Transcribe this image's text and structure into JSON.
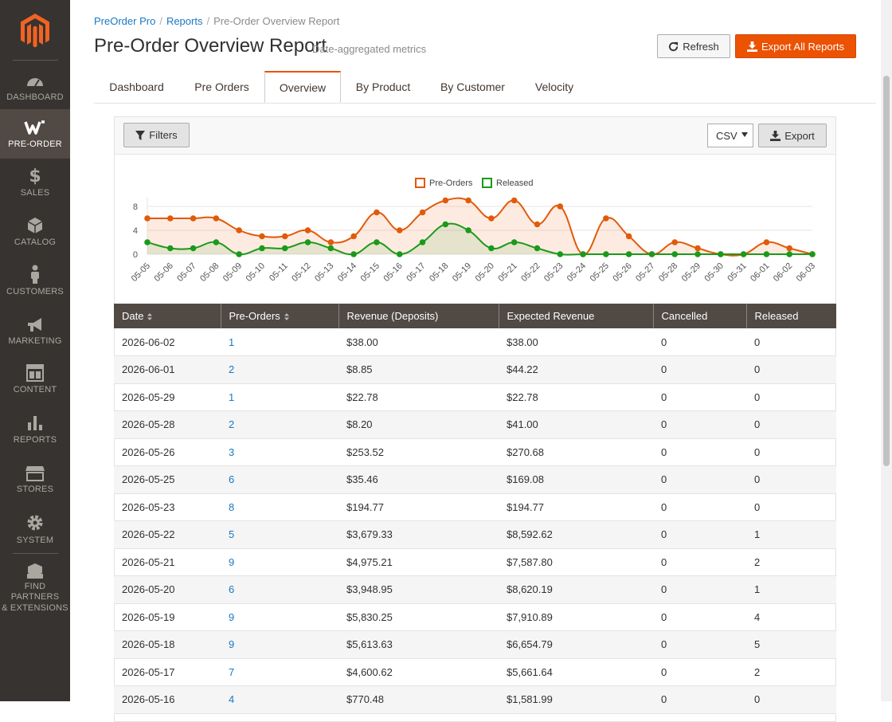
{
  "sidebar": {
    "items": [
      {
        "label": "DASHBOARD",
        "icon": "dashboard-icon"
      },
      {
        "label": "PRE-ORDER",
        "icon": "preorder-icon"
      },
      {
        "label": "SALES",
        "icon": "dollar-icon"
      },
      {
        "label": "CATALOG",
        "icon": "box-icon"
      },
      {
        "label": "CUSTOMERS",
        "icon": "person-icon"
      },
      {
        "label": "MARKETING",
        "icon": "megaphone-icon"
      },
      {
        "label": "CONTENT",
        "icon": "layout-icon"
      },
      {
        "label": "REPORTS",
        "icon": "bar-chart-icon"
      },
      {
        "label": "STORES",
        "icon": "store-icon"
      },
      {
        "label": "SYSTEM",
        "icon": "gear-icon"
      }
    ],
    "extensions_label_1": "FIND PARTNERS",
    "extensions_label_2": "& EXTENSIONS"
  },
  "breadcrumb": {
    "items": [
      "PreOrder Pro",
      "Reports",
      "Pre-Order Overview Report"
    ],
    "separator": "/"
  },
  "header": {
    "title": "Pre-Order Overview Report",
    "subtitle": "Date-aggregated metrics",
    "refresh_label": "Refresh",
    "export_all_label": "Export All Reports"
  },
  "tabs": [
    "Dashboard",
    "Pre Orders",
    "Overview",
    "By Product",
    "By Customer",
    "Velocity"
  ],
  "toolbar": {
    "filters_label": "Filters",
    "format_value": "CSV",
    "export_label": "Export"
  },
  "colors": {
    "accent": "#eb5202",
    "preorders_line": "#e15a0a",
    "released_line": "#1a9a1a",
    "table_header": "#514943",
    "link": "#1979c3"
  },
  "chart_data": {
    "type": "line",
    "x": [
      "05-05",
      "05-06",
      "05-07",
      "05-08",
      "05-09",
      "05-10",
      "05-11",
      "05-12",
      "05-13",
      "05-14",
      "05-15",
      "05-16",
      "05-17",
      "05-18",
      "05-19",
      "05-20",
      "05-21",
      "05-22",
      "05-23",
      "05-24",
      "05-25",
      "05-26",
      "05-27",
      "05-28",
      "05-29",
      "05-30",
      "05-31",
      "06-01",
      "06-02",
      "06-03"
    ],
    "series": [
      {
        "name": "Pre-Orders",
        "values": [
          6,
          6,
          6,
          6,
          4,
          3,
          3,
          4,
          2,
          3,
          7,
          4,
          7,
          9,
          9,
          6,
          9,
          5,
          8,
          0,
          6,
          3,
          0,
          2,
          1,
          0,
          0,
          2,
          1,
          0
        ]
      },
      {
        "name": "Released",
        "values": [
          2,
          1,
          1,
          2,
          0,
          1,
          1,
          2,
          1,
          0,
          2,
          0,
          2,
          5,
          4,
          1,
          2,
          1,
          0,
          0,
          0,
          0,
          0,
          0,
          0,
          0,
          0,
          0,
          0,
          0
        ]
      }
    ],
    "yticks": [
      "0",
      "4",
      "8"
    ],
    "ylim": [
      0,
      10
    ],
    "legend": "top-center",
    "grid": true
  },
  "table": {
    "columns": [
      "Date",
      "Pre-Orders",
      "Revenue (Deposits)",
      "Expected Revenue",
      "Cancelled",
      "Released"
    ],
    "rows": [
      [
        "2026-06-02",
        "1",
        "$38.00",
        "$38.00",
        "0",
        "0"
      ],
      [
        "2026-06-01",
        "2",
        "$8.85",
        "$44.22",
        "0",
        "0"
      ],
      [
        "2026-05-29",
        "1",
        "$22.78",
        "$22.78",
        "0",
        "0"
      ],
      [
        "2026-05-28",
        "2",
        "$8.20",
        "$41.00",
        "0",
        "0"
      ],
      [
        "2026-05-26",
        "3",
        "$253.52",
        "$270.68",
        "0",
        "0"
      ],
      [
        "2026-05-25",
        "6",
        "$35.46",
        "$169.08",
        "0",
        "0"
      ],
      [
        "2026-05-23",
        "8",
        "$194.77",
        "$194.77",
        "0",
        "0"
      ],
      [
        "2026-05-22",
        "5",
        "$3,679.33",
        "$8,592.62",
        "0",
        "1"
      ],
      [
        "2026-05-21",
        "9",
        "$4,975.21",
        "$7,587.80",
        "0",
        "2"
      ],
      [
        "2026-05-20",
        "6",
        "$3,948.95",
        "$8,620.19",
        "0",
        "1"
      ],
      [
        "2026-05-19",
        "9",
        "$5,830.25",
        "$7,910.89",
        "0",
        "4"
      ],
      [
        "2026-05-18",
        "9",
        "$5,613.63",
        "$6,654.79",
        "0",
        "5"
      ],
      [
        "2026-05-17",
        "7",
        "$4,600.62",
        "$5,661.64",
        "0",
        "2"
      ],
      [
        "2026-05-16",
        "4",
        "$770.48",
        "$1,581.99",
        "0",
        "0"
      ]
    ]
  }
}
